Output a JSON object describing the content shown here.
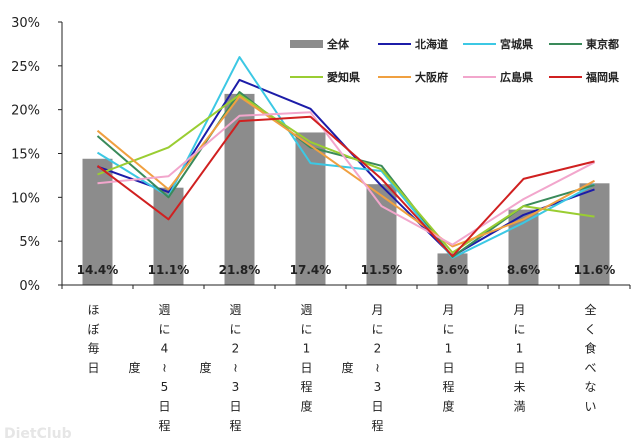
{
  "chart_data": {
    "type": "bar+line",
    "categories": [
      "ほぼ毎日",
      "週に4～5日程度",
      "週に2～3日程度",
      "週に1日程度",
      "月に2～3日程度",
      "月に1日程度",
      "月に1日未満",
      "全く食べない"
    ],
    "ylim": [
      0,
      30
    ],
    "yticks": [
      "0%",
      "5%",
      "10%",
      "15%",
      "20%",
      "25%",
      "30%"
    ],
    "grid": false,
    "legend_position": "top-right",
    "bar_series": {
      "name": "全体",
      "color": "#8c8c8c",
      "values": [
        14.4,
        11.1,
        21.8,
        17.4,
        11.5,
        3.6,
        8.6,
        11.6
      ],
      "data_labels": [
        "14.4%",
        "11.1%",
        "21.8%",
        "17.4%",
        "11.5%",
        "3.6%",
        "8.6%",
        "11.6%"
      ]
    },
    "line_series": [
      {
        "name": "北海道",
        "color": "#1c1ca8",
        "values": [
          13.5,
          10.6,
          23.4,
          20.1,
          11.3,
          3.3,
          8.0,
          10.9
        ]
      },
      {
        "name": "宮城県",
        "color": "#3cc8e4",
        "values": [
          15.1,
          10.1,
          26.0,
          13.9,
          13.0,
          3.1,
          7.1,
          11.5
        ]
      },
      {
        "name": "東京都",
        "color": "#3a8a5a",
        "values": [
          17.0,
          10.0,
          22.0,
          15.7,
          13.6,
          3.2,
          9.0,
          11.4
        ]
      },
      {
        "name": "愛知県",
        "color": "#9acd32",
        "values": [
          12.6,
          15.7,
          21.7,
          16.3,
          13.2,
          3.7,
          9.0,
          7.8
        ]
      },
      {
        "name": "大阪府",
        "color": "#f0a040",
        "values": [
          17.6,
          10.9,
          21.5,
          15.9,
          10.2,
          4.4,
          7.5,
          11.9
        ]
      },
      {
        "name": "広島県",
        "color": "#f2a6cc",
        "values": [
          11.6,
          12.4,
          19.3,
          19.7,
          9.0,
          4.6,
          9.8,
          14.0
        ]
      },
      {
        "name": "福岡県",
        "color": "#d02020",
        "values": [
          13.6,
          7.5,
          18.7,
          19.2,
          12.1,
          3.3,
          12.1,
          14.1
        ]
      }
    ]
  },
  "watermark": "DietClub"
}
